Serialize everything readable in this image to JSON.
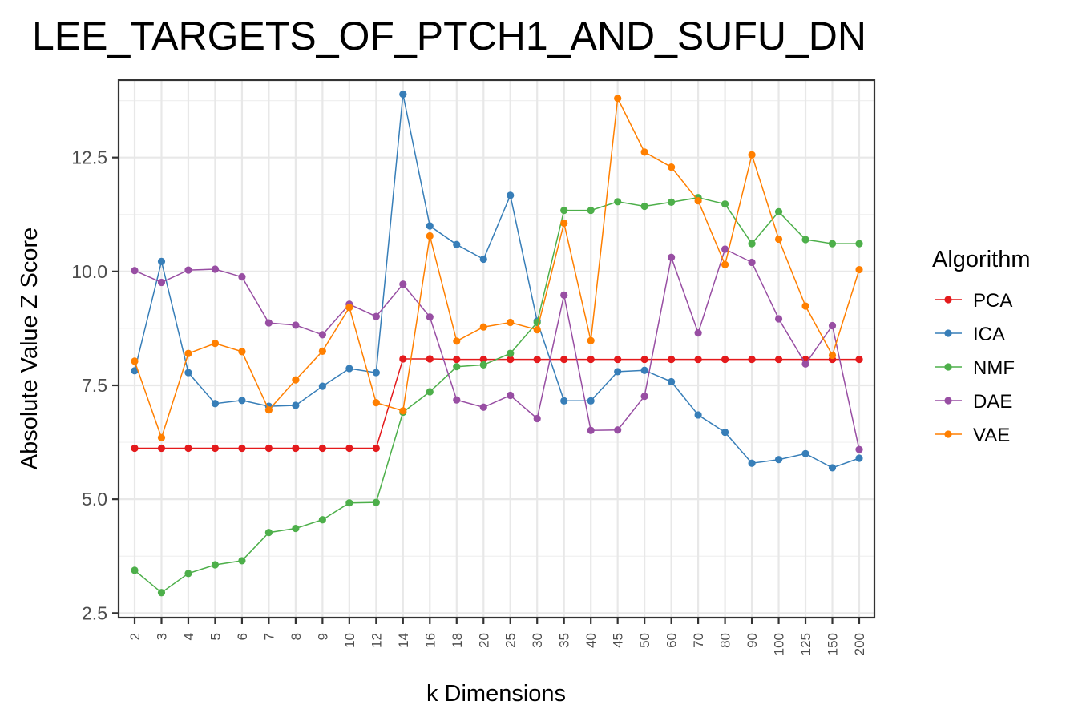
{
  "chart_data": {
    "type": "line",
    "title": "LEE_TARGETS_OF_PTCH1_AND_SUFU_DN",
    "xlabel": "k Dimensions",
    "ylabel": "Absolute Value Z Score",
    "categories": [
      "2",
      "3",
      "4",
      "5",
      "6",
      "7",
      "8",
      "9",
      "10",
      "12",
      "14",
      "16",
      "18",
      "20",
      "25",
      "30",
      "35",
      "40",
      "45",
      "50",
      "60",
      "70",
      "80",
      "90",
      "100",
      "125",
      "150",
      "200"
    ],
    "ylim": [
      2.4,
      14.2
    ],
    "yticks": [
      2.5,
      5.0,
      7.5,
      10.0,
      12.5
    ],
    "ytick_labels": [
      "2.5",
      "5.0",
      "7.5",
      "10.0",
      "12.5"
    ],
    "grid": true,
    "legend": {
      "title": "Algorithm",
      "position": "right"
    },
    "series": [
      {
        "name": "PCA",
        "color": "#e41a1c",
        "values": [
          6.12,
          6.12,
          6.12,
          6.12,
          6.12,
          6.12,
          6.12,
          6.12,
          6.12,
          6.12,
          8.08,
          8.08,
          8.07,
          8.07,
          8.07,
          8.07,
          8.07,
          8.07,
          8.07,
          8.07,
          8.07,
          8.07,
          8.07,
          8.07,
          8.07,
          8.07,
          8.07,
          8.07
        ]
      },
      {
        "name": "ICA",
        "color": "#377eb8",
        "values": [
          7.82,
          10.22,
          7.78,
          7.1,
          7.17,
          7.04,
          7.06,
          7.48,
          7.87,
          7.78,
          13.89,
          11.0,
          10.59,
          10.27,
          11.67,
          8.91,
          7.16,
          7.16,
          7.8,
          7.83,
          7.58,
          6.85,
          6.47,
          5.79,
          5.87,
          6.0,
          5.69,
          5.9
        ]
      },
      {
        "name": "NMF",
        "color": "#4daf4a",
        "values": [
          3.44,
          2.95,
          3.37,
          3.56,
          3.65,
          4.27,
          4.36,
          4.55,
          4.92,
          4.93,
          6.91,
          7.36,
          7.91,
          7.95,
          8.2,
          8.88,
          11.34,
          11.34,
          11.53,
          11.43,
          11.52,
          11.62,
          11.48,
          10.61,
          11.31,
          10.7,
          10.61,
          10.61
        ]
      },
      {
        "name": "DAE",
        "color": "#984ea3",
        "values": [
          10.02,
          9.76,
          10.03,
          10.05,
          9.88,
          8.87,
          8.82,
          8.61,
          9.28,
          9.01,
          9.72,
          9.0,
          7.18,
          7.02,
          7.28,
          6.77,
          9.48,
          6.51,
          6.52,
          7.26,
          10.31,
          8.65,
          10.49,
          10.2,
          8.96,
          7.97,
          8.81,
          6.09
        ]
      },
      {
        "name": "VAE",
        "color": "#ff7f00",
        "values": [
          8.03,
          6.35,
          8.2,
          8.42,
          8.24,
          6.96,
          7.62,
          8.25,
          9.21,
          7.12,
          6.94,
          10.78,
          8.47,
          8.78,
          8.88,
          8.72,
          11.06,
          8.48,
          13.8,
          12.62,
          12.29,
          11.55,
          10.15,
          12.56,
          10.71,
          9.24,
          8.16,
          10.04
        ]
      }
    ]
  }
}
